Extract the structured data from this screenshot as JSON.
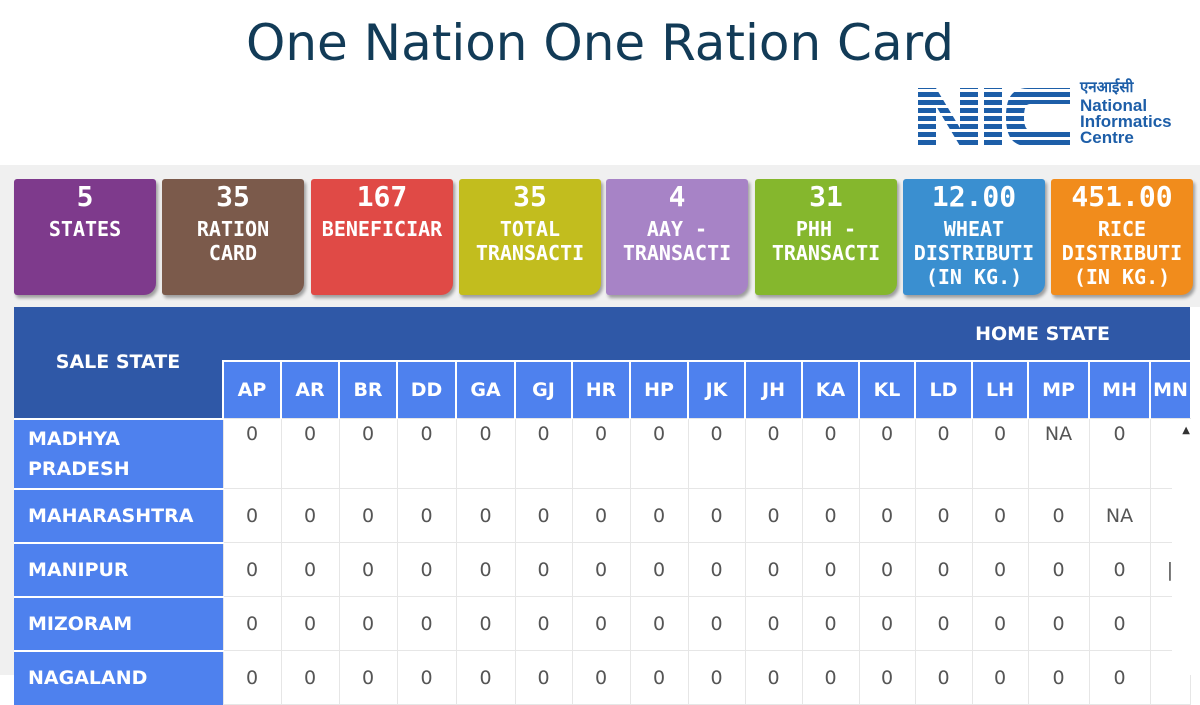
{
  "title": "One Nation One Ration Card",
  "logo": {
    "hindi": "एनआईसी",
    "lines": [
      "National",
      "Informatics",
      "Centre"
    ],
    "mark_text": "NIC",
    "color": "#1d5ea8"
  },
  "cards": [
    {
      "value": "5",
      "label": "STATES",
      "color": "#7e3a8c"
    },
    {
      "value": "35",
      "label": "RATION\nCARD",
      "color": "#7b5a4b"
    },
    {
      "value": "167",
      "label": "BENEFICIAR",
      "color": "#e04a46"
    },
    {
      "value": "35",
      "label": "TOTAL\nTRANSACTI",
      "color": "#c2bd1e"
    },
    {
      "value": "4",
      "label": "AAY -\nTRANSACTI",
      "color": "#a783c6"
    },
    {
      "value": "31",
      "label": "PHH -\nTRANSACTI",
      "color": "#85b72d"
    },
    {
      "value": "12.00",
      "label": "WHEAT\nDISTRIBUTI\n(IN KG.)",
      "color": "#3a8fd0"
    },
    {
      "value": "451.00",
      "label": "RICE\nDISTRIBUTI\n(IN KG.)",
      "color": "#f18c1c"
    }
  ],
  "table": {
    "sale_state_header": "SALE STATE",
    "home_state_header": "HOME STATE",
    "codes": [
      "AP",
      "AR",
      "BR",
      "DD",
      "GA",
      "GJ",
      "HR",
      "HP",
      "JK",
      "JH",
      "KA",
      "KL",
      "LD",
      "LH",
      "MP",
      "MH",
      "MN"
    ],
    "rows": [
      {
        "name": "MADHYA\nPRADESH",
        "values": [
          "0",
          "0",
          "0",
          "0",
          "0",
          "0",
          "0",
          "0",
          "0",
          "0",
          "0",
          "0",
          "0",
          "0",
          "NA",
          "0",
          ""
        ]
      },
      {
        "name": "MAHARASHTRA",
        "values": [
          "0",
          "0",
          "0",
          "0",
          "0",
          "0",
          "0",
          "0",
          "0",
          "0",
          "0",
          "0",
          "0",
          "0",
          "0",
          "NA",
          ""
        ]
      },
      {
        "name": "MANIPUR",
        "values": [
          "0",
          "0",
          "0",
          "0",
          "0",
          "0",
          "0",
          "0",
          "0",
          "0",
          "0",
          "0",
          "0",
          "0",
          "0",
          "0",
          "|"
        ]
      },
      {
        "name": "MIZORAM",
        "values": [
          "0",
          "0",
          "0",
          "0",
          "0",
          "0",
          "0",
          "0",
          "0",
          "0",
          "0",
          "0",
          "0",
          "0",
          "0",
          "0",
          ""
        ]
      },
      {
        "name": "NAGALAND",
        "values": [
          "0",
          "0",
          "0",
          "0",
          "0",
          "0",
          "0",
          "0",
          "0",
          "0",
          "0",
          "0",
          "0",
          "0",
          "0",
          "0",
          ""
        ]
      }
    ]
  }
}
